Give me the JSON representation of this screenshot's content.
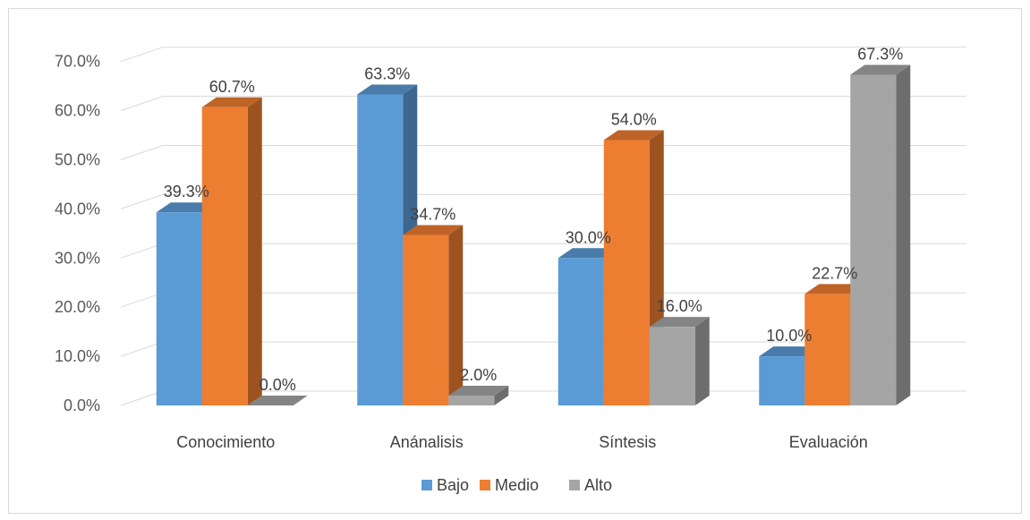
{
  "chart_data": {
    "type": "bar",
    "categories": [
      "Conocimiento",
      "Anánalisis",
      "Síntesis",
      "Evaluación"
    ],
    "series": [
      {
        "name": "Bajo",
        "values": [
          39.3,
          63.3,
          30.0,
          10.0
        ],
        "labels": [
          "39.3%",
          "63.3%",
          "30.0%",
          "10.0%"
        ],
        "color": "#5b9bd5"
      },
      {
        "name": "Medio",
        "values": [
          60.7,
          34.7,
          54.0,
          22.7
        ],
        "labels": [
          "60.7%",
          "34.7%",
          "54.0%",
          "22.7%"
        ],
        "color": "#ed7d31"
      },
      {
        "name": "Alto",
        "values": [
          0.0,
          2.0,
          16.0,
          67.3
        ],
        "labels": [
          "0.0%",
          "2.0%",
          "16.0%",
          "67.3%"
        ],
        "color": "#a5a5a5"
      }
    ],
    "y_ticks": [
      "0.0%",
      "10.0%",
      "20.0%",
      "30.0%",
      "40.0%",
      "50.0%",
      "60.0%",
      "70.0%"
    ],
    "ylim": [
      0,
      70
    ],
    "grid": true,
    "legend_position": "bottom",
    "style": "3d-clustered-column"
  }
}
